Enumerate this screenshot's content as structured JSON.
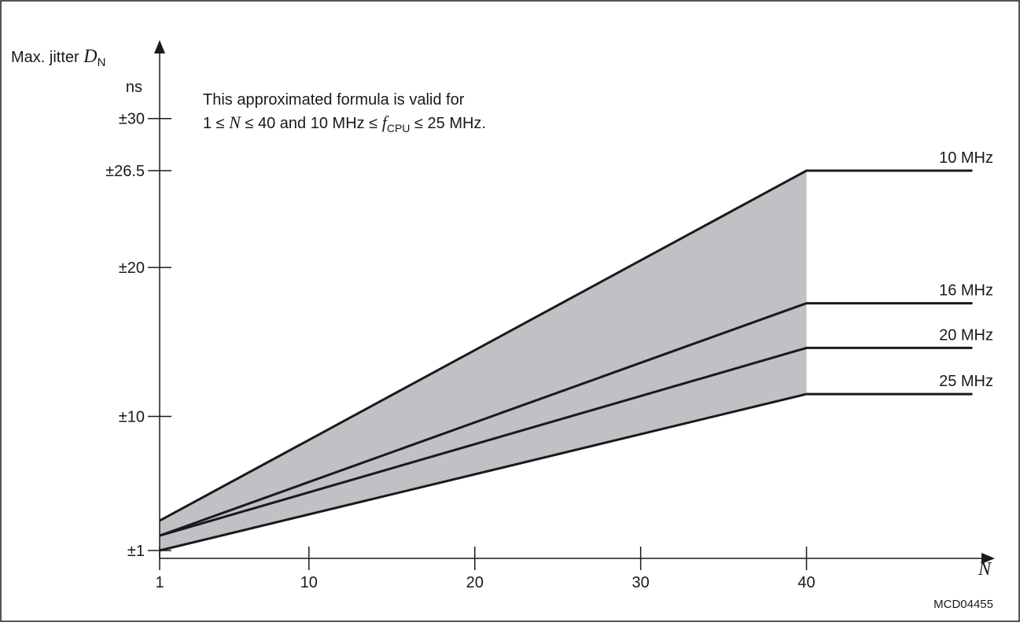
{
  "chart_data": {
    "type": "line",
    "figure_id": "MCD04455",
    "note_line1": "This approximated formula is valid for",
    "note_line2": {
      "pre": "1 ≤ ",
      "n": "N",
      "mid": " ≤ 40 and 10 MHz ≤ ",
      "f": "f",
      "sub": "CPU",
      "post": " ≤ 25 MHz."
    },
    "ylabel": {
      "text": "Max. jitter ",
      "symbol": "D",
      "subscript": "N",
      "unit": "ns"
    },
    "xlabel": "N",
    "x_ticks": [
      1,
      10,
      20,
      30,
      40
    ],
    "y_ticks": [
      {
        "value": 1,
        "label": "±1"
      },
      {
        "value": 10,
        "label": "±10"
      },
      {
        "value": 20,
        "label": "±20"
      },
      {
        "value": 26.5,
        "label": "±26.5"
      },
      {
        "value": 30,
        "label": "±30"
      }
    ],
    "xlim": [
      1,
      50.5
    ],
    "ylim": [
      1,
      35
    ],
    "series": [
      {
        "name": "10 MHz",
        "x": [
          1,
          40,
          50
        ],
        "y": [
          3,
          26.5,
          26.5
        ]
      },
      {
        "name": "16 MHz",
        "x": [
          1,
          40,
          50
        ],
        "y": [
          2,
          17.6,
          17.6
        ]
      },
      {
        "name": "20 MHz",
        "x": [
          1,
          40,
          50
        ],
        "y": [
          2,
          14.6,
          14.6
        ]
      },
      {
        "name": "25 MHz",
        "x": [
          1,
          40,
          50
        ],
        "y": [
          1,
          11.5,
          11.5
        ]
      }
    ],
    "shaded_region": {
      "between": [
        "10 MHz",
        "25 MHz"
      ],
      "x_range": [
        1,
        40
      ],
      "color": "#c0c1c4"
    },
    "line_color": "#1a1a1a"
  }
}
